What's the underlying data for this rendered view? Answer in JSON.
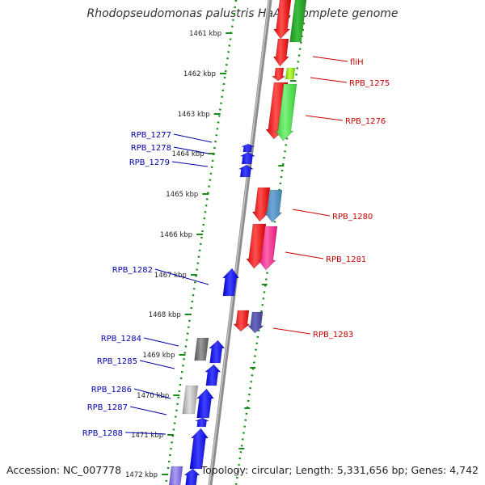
{
  "title": "Rhodopseudomonas palustris HaA2, complete genome",
  "footer": {
    "accession": "Accession: NC_007778",
    "summary": "Topology: circular; Length: 5,331,656 bp; Genes: 4,742"
  },
  "colors": {
    "ruler": "#1a8a1a",
    "backbone": "#8c8c8c",
    "label_left": "#0000aa",
    "label_right": "#cc0000",
    "forward_gene": "#ff0000",
    "reverse_gene": "#0000ff"
  },
  "ruler_ticks": [
    "1461 kbp",
    "1462 kbp",
    "1463 kbp",
    "1464 kbp",
    "1465 kbp",
    "1466 kbp",
    "1467 kbp",
    "1468 kbp",
    "1469 kbp",
    "1470 kbp",
    "1471 kbp",
    "1472 kbp"
  ],
  "gene_labels_left": [
    "RPB_1277",
    "RPB_1278",
    "RPB_1279",
    "RPB_1282",
    "RPB_1284",
    "RPB_1285",
    "RPB_1286",
    "RPB_1287",
    "RPB_1288"
  ],
  "gene_labels_right": [
    "fliH",
    "RPB_1275",
    "RPB_1276",
    "RPB_1280",
    "RPB_1281",
    "RPB_1283"
  ]
}
